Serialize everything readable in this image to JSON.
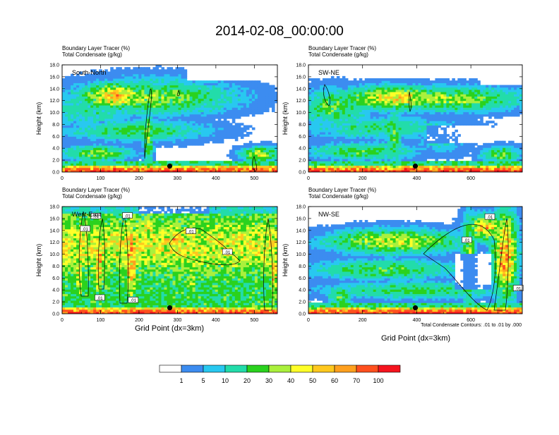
{
  "page_title": "2014-02-08_00:00:00",
  "colors": {
    "palette": [
      "#ffffff",
      "#3c8cf0",
      "#28c8f0",
      "#22dcaa",
      "#2ad21e",
      "#aaf03c",
      "#ffff28",
      "#ffc81e",
      "#ffa01e",
      "#ff501e",
      "#f5141e"
    ],
    "contour_line": "#000000",
    "marker": "#000000"
  },
  "colorbar": {
    "labels": [
      "1",
      "5",
      "10",
      "20",
      "30",
      "40",
      "50",
      "60",
      "70",
      "100"
    ]
  },
  "contour_info": "Total Condensate Contours: .01 to .01 by .000",
  "x_axis_label_left": "Grid Point (dx=3km)",
  "x_axis_label_right": "Grid Point (dx=3km)",
  "chart_data": [
    {
      "type": "heatmap",
      "panel": "South-North",
      "title_line1": "Boundary Layer Tracer    (%)",
      "title_line2": "Total Condensate   (g/kg)",
      "ylabel": "Height (km)",
      "xlabel": "",
      "xlim": [
        0,
        560
      ],
      "ylim": [
        0,
        18
      ],
      "xticks": [
        "0",
        "100",
        "200",
        "300",
        "400",
        "500"
      ],
      "yticks": [
        "0.0",
        "2.0",
        "4.0",
        "6.0",
        "8.0",
        "10.0",
        "12.0",
        "14.0",
        "16.0",
        "18.0"
      ],
      "marker": {
        "x": 280,
        "y": 1.0
      },
      "contour_labels": []
    },
    {
      "type": "heatmap",
      "panel": "SW-NE",
      "title_line1": "Boundary Layer Tracer    (%)",
      "title_line2": "Total Condensate   (g/kg)",
      "ylabel": "Height (km)",
      "xlabel": "",
      "xlim": [
        0,
        790
      ],
      "ylim": [
        0,
        18
      ],
      "xticks": [
        "0",
        "200",
        "400",
        "600"
      ],
      "yticks": [
        "0.0",
        "2.0",
        "4.0",
        "6.0",
        "8.0",
        "10.0",
        "12.0",
        "14.0",
        "16.0",
        "18.0"
      ],
      "marker": {
        "x": 395,
        "y": 1.0
      },
      "contour_labels": []
    },
    {
      "type": "heatmap",
      "panel": "West-East",
      "title_line1": "Boundary Layer Tracer    (%)",
      "title_line2": "Total Condensate   (g/kg)",
      "ylabel": "Height (km)",
      "xlabel": "Grid Point (dx=3km)",
      "xlim": [
        0,
        560
      ],
      "ylim": [
        0,
        18
      ],
      "xticks": [
        "0",
        "100",
        "200",
        "300",
        "400",
        "500"
      ],
      "yticks": [
        "0.0",
        "2.0",
        "4.0",
        "6.0",
        "8.0",
        "10.0",
        "12.0",
        "14.0",
        "16.0",
        "18.0"
      ],
      "marker": {
        "x": 280,
        "y": 1.0
      },
      "contour_labels": [
        {
          "text": ".01",
          "x": 60,
          "y": 14.2
        },
        {
          "text": ".01",
          "x": 170,
          "y": 16.4
        },
        {
          "text": ".01",
          "x": 88,
          "y": 16.3
        },
        {
          "text": ".01",
          "x": 335,
          "y": 13.8
        },
        {
          "text": ".01",
          "x": 430,
          "y": 10.3
        },
        {
          "text": ".01",
          "x": 98,
          "y": 2.6
        },
        {
          "text": ".01",
          "x": 185,
          "y": 2.2
        }
      ]
    },
    {
      "type": "heatmap",
      "panel": "NW-SE",
      "title_line1": "Boundary Layer Tracer    (%)",
      "title_line2": "Total Condensate   (g/kg)",
      "ylabel": "Height (km)",
      "xlabel": "",
      "xlim": [
        0,
        790
      ],
      "ylim": [
        0,
        18
      ],
      "xticks": [
        "0",
        "200",
        "400",
        "600"
      ],
      "yticks": [
        "0.0",
        "2.0",
        "4.0",
        "6.0",
        "8.0",
        "10.0",
        "12.0",
        "14.0",
        "16.0",
        "18.0"
      ],
      "marker": {
        "x": 395,
        "y": 1.0
      },
      "contour_labels": [
        {
          "text": ".01",
          "x": 670,
          "y": 16.2
        },
        {
          "text": ".01",
          "x": 585,
          "y": 12.3
        },
        {
          "text": ".01",
          "x": 775,
          "y": 4.2
        }
      ]
    }
  ]
}
